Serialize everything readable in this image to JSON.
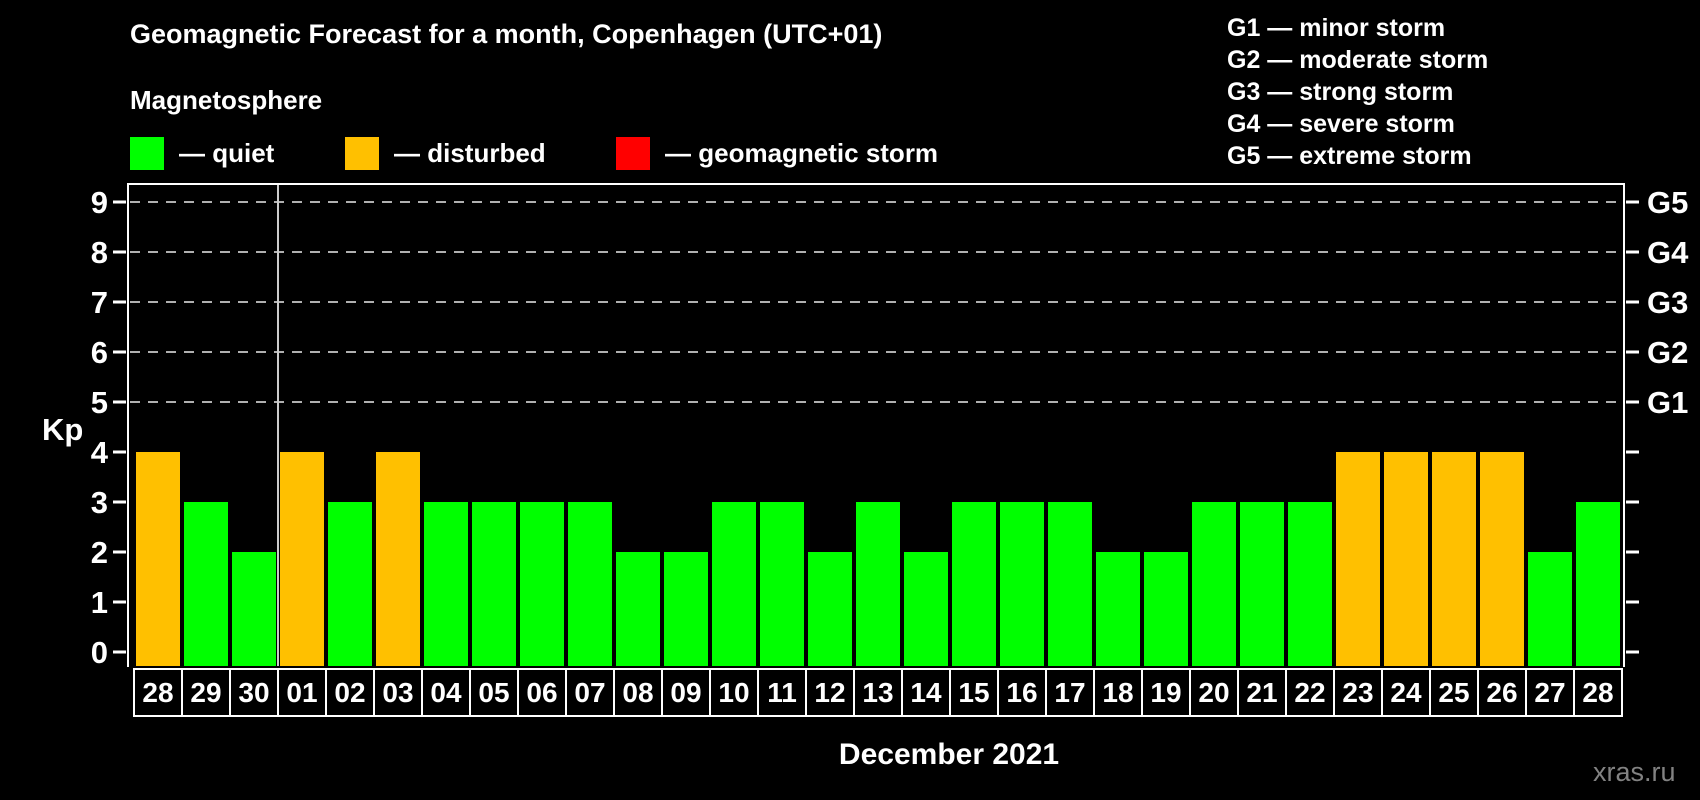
{
  "header": {
    "title": "Geomagnetic Forecast for a month, Copenhagen (UTC+01)",
    "subtitle": "Magnetosphere"
  },
  "dash": "—",
  "legend": [
    {
      "status": "quiet",
      "label": "quiet",
      "color": "#00ff00"
    },
    {
      "status": "disturbed",
      "label": "disturbed",
      "color": "#ffc000"
    },
    {
      "status": "storm",
      "label": "geomagnetic storm",
      "color": "#ff0000"
    }
  ],
  "g_legend": [
    {
      "code": "G1",
      "label": "minor storm"
    },
    {
      "code": "G2",
      "label": "moderate storm"
    },
    {
      "code": "G3",
      "label": "strong storm"
    },
    {
      "code": "G4",
      "label": "severe storm"
    },
    {
      "code": "G5",
      "label": "extreme storm"
    }
  ],
  "chart_data": {
    "type": "bar",
    "title": "Geomagnetic Forecast for a month, Copenhagen (UTC+01)",
    "ylabel": "Kp",
    "xlabel": "December 2021",
    "ylim": [
      0,
      9
    ],
    "yticks": [
      0,
      1,
      2,
      3,
      4,
      5,
      6,
      7,
      8,
      9
    ],
    "gridlines": [
      5,
      6,
      7,
      8,
      9
    ],
    "grid": "dashed horizontal at Kp 5-9",
    "legend_position": "top",
    "right_axis": [
      {
        "kp": 9,
        "label": "G5"
      },
      {
        "kp": 8,
        "label": "G4"
      },
      {
        "kp": 7,
        "label": "G3"
      },
      {
        "kp": 6,
        "label": "G2"
      },
      {
        "kp": 5,
        "label": "G1"
      }
    ],
    "categories": [
      "28",
      "29",
      "30",
      "01",
      "02",
      "03",
      "04",
      "05",
      "06",
      "07",
      "08",
      "09",
      "10",
      "11",
      "12",
      "13",
      "14",
      "15",
      "16",
      "17",
      "18",
      "19",
      "20",
      "21",
      "22",
      "23",
      "24",
      "25",
      "26",
      "27",
      "28"
    ],
    "prev_month_day_count": 3,
    "series": [
      {
        "name": "Kp forecast",
        "values": [
          4,
          3,
          2,
          4,
          3,
          4,
          3,
          3,
          3,
          3,
          2,
          2,
          3,
          3,
          2,
          3,
          2,
          3,
          3,
          3,
          2,
          2,
          3,
          3,
          3,
          4,
          4,
          4,
          4,
          2,
          3
        ],
        "status": [
          "disturbed",
          "quiet",
          "quiet",
          "disturbed",
          "quiet",
          "disturbed",
          "quiet",
          "quiet",
          "quiet",
          "quiet",
          "quiet",
          "quiet",
          "quiet",
          "quiet",
          "quiet",
          "quiet",
          "quiet",
          "quiet",
          "quiet",
          "quiet",
          "quiet",
          "quiet",
          "quiet",
          "quiet",
          "quiet",
          "disturbed",
          "disturbed",
          "disturbed",
          "disturbed",
          "quiet",
          "quiet"
        ]
      }
    ],
    "status_colors": {
      "quiet": "#00ff00",
      "disturbed": "#ffc000",
      "storm": "#ff0000"
    }
  },
  "watermark": "xras.ru"
}
